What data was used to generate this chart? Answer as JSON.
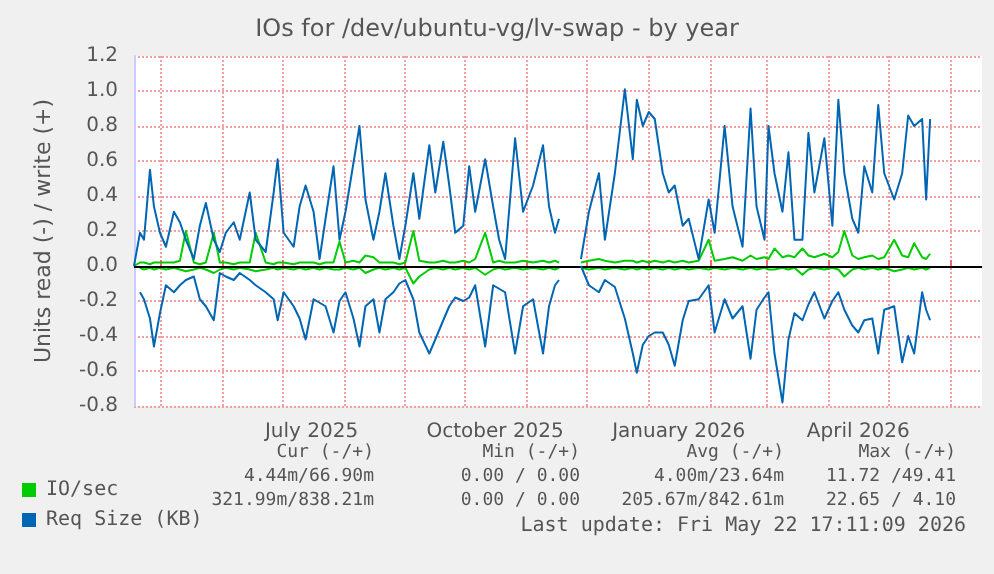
{
  "chart_data": {
    "type": "line",
    "title": "IOs for /dev/ubuntu-vg/lv-swap - by year",
    "ylabel": "Units read (-) / write (+)",
    "x": [
      "2025-04-18",
      "2025-04-21",
      "2025-04-23",
      "2025-04-26",
      "2025-04-28",
      "2025-05-01",
      "2025-05-04",
      "2025-05-08",
      "2025-05-11",
      "2025-05-14",
      "2025-05-18",
      "2025-05-21",
      "2025-05-24",
      "2025-05-28",
      "2025-05-31",
      "2025-06-03",
      "2025-06-07",
      "2025-06-10",
      "2025-06-15",
      "2025-06-18",
      "2025-06-23",
      "2025-06-27",
      "2025-06-29",
      "2025-07-02",
      "2025-07-07",
      "2025-07-10",
      "2025-07-13",
      "2025-07-17",
      "2025-07-20",
      "2025-07-23",
      "2025-07-27",
      "2025-07-30",
      "2025-08-02",
      "2025-08-06",
      "2025-08-09",
      "2025-08-12",
      "2025-08-16",
      "2025-08-19",
      "2025-08-22",
      "2025-08-26",
      "2025-08-29",
      "2025-09-01",
      "2025-09-05",
      "2025-09-08",
      "2025-09-13",
      "2025-09-16",
      "2025-09-20",
      "2025-09-23",
      "2025-09-26",
      "2025-09-30",
      "2025-10-03",
      "2025-10-06",
      "2025-10-11",
      "2025-10-15",
      "2025-10-18",
      "2025-10-21",
      "2025-10-26",
      "2025-10-30",
      "2025-11-04",
      "2025-11-09",
      "2025-11-12",
      "2025-11-15",
      "2025-11-17",
      "2025-11-22",
      "2025-11-28",
      "2025-12-02",
      "2025-12-07",
      "2025-12-10",
      "2025-12-15",
      "2025-12-20",
      "2025-12-24",
      "2025-12-26",
      "2025-12-29",
      "2026-01-01",
      "2026-01-04",
      "2026-01-08",
      "2026-01-11",
      "2026-01-14",
      "2026-01-18",
      "2026-01-21",
      "2026-01-26",
      "2026-01-31",
      "2026-02-03",
      "2026-02-08",
      "2026-02-12",
      "2026-02-17",
      "2026-02-21",
      "2026-02-24",
      "2026-02-28",
      "2026-03-02",
      "2026-03-05",
      "2026-03-09",
      "2026-03-12",
      "2026-03-15",
      "2026-03-19",
      "2026-03-22",
      "2026-03-25",
      "2026-03-30",
      "2026-04-03",
      "2026-04-06",
      "2026-04-09",
      "2026-04-13",
      "2026-04-16",
      "2026-04-19",
      "2026-04-23",
      "2026-04-26",
      "2026-04-29",
      "2026-05-04",
      "2026-05-08",
      "2026-05-11",
      "2026-05-14",
      "2026-05-18",
      "2026-05-20",
      "2026-05-22"
    ],
    "series": [
      {
        "name": "IO/sec",
        "color": "#00cc00",
        "values": [
          0,
          0.02,
          0.02,
          0.01,
          0.02,
          0.02,
          0.02,
          0.02,
          0.03,
          0.2,
          0.02,
          0.01,
          0.02,
          0.19,
          0.02,
          0.02,
          0.01,
          0.02,
          0.02,
          0.19,
          0.02,
          0.01,
          0.02,
          0.02,
          0.01,
          0.02,
          0.02,
          0.02,
          0.01,
          0.02,
          0.02,
          0.14,
          0.02,
          0.03,
          0.02,
          0.06,
          0.05,
          0.02,
          0.02,
          0.02,
          0.01,
          0.02,
          0.2,
          0.03,
          0.02,
          0.02,
          0.03,
          0.02,
          0.02,
          0.03,
          0.02,
          0.04,
          0.19,
          0.02,
          0.03,
          0.02,
          0.02,
          0.03,
          0.02,
          0.03,
          0.02,
          0.03,
          0.02,
          null,
          0.02,
          0.03,
          0.04,
          0.03,
          0.02,
          0.03,
          0.03,
          0.02,
          0.03,
          0.02,
          0.03,
          0.02,
          0.03,
          0.02,
          0.03,
          0.02,
          0.03,
          0.15,
          0.03,
          0.04,
          0.05,
          0.03,
          0.06,
          0.04,
          0.05,
          0.04,
          0.1,
          0.05,
          0.06,
          0.05,
          0.1,
          0.06,
          0.05,
          0.07,
          0.05,
          0.08,
          0.2,
          0.06,
          0.04,
          0.05,
          0.06,
          0.04,
          0.05,
          0.15,
          0.06,
          0.05,
          0.13,
          0.05,
          0.04,
          0.07
        ]
      },
      {
        "color": "#00cc00",
        "values": [
          null,
          -0.01,
          -0.02,
          -0.01,
          -0.02,
          -0.01,
          -0.02,
          -0.01,
          -0.02,
          -0.03,
          -0.02,
          -0.01,
          -0.02,
          -0.04,
          -0.02,
          -0.01,
          -0.02,
          -0.01,
          -0.02,
          -0.03,
          -0.02,
          -0.01,
          -0.02,
          -0.01,
          -0.02,
          -0.01,
          -0.02,
          -0.01,
          -0.02,
          -0.01,
          -0.02,
          -0.02,
          -0.01,
          -0.02,
          -0.01,
          -0.04,
          -0.02,
          -0.01,
          -0.02,
          -0.01,
          -0.02,
          -0.01,
          -0.1,
          -0.06,
          -0.02,
          -0.01,
          -0.02,
          -0.01,
          -0.02,
          -0.01,
          -0.02,
          -0.01,
          -0.05,
          -0.02,
          -0.01,
          -0.02,
          -0.01,
          -0.02,
          -0.01,
          -0.02,
          -0.01,
          -0.02,
          -0.01,
          null,
          -0.01,
          -0.02,
          -0.01,
          -0.02,
          -0.01,
          -0.02,
          -0.01,
          -0.02,
          -0.01,
          -0.02,
          -0.01,
          -0.02,
          -0.01,
          -0.02,
          -0.01,
          -0.02,
          -0.01,
          -0.02,
          -0.01,
          -0.02,
          -0.01,
          -0.02,
          -0.01,
          -0.02,
          -0.01,
          -0.02,
          -0.02,
          -0.01,
          -0.02,
          -0.01,
          -0.05,
          -0.02,
          -0.01,
          -0.02,
          -0.01,
          -0.02,
          -0.06,
          -0.02,
          -0.01,
          -0.02,
          -0.01,
          -0.02,
          -0.01,
          -0.03,
          -0.02,
          -0.01,
          -0.02,
          -0.01,
          -0.02,
          -0.01
        ]
      },
      {
        "name": "Req Size (KB)",
        "color": "#0066b3",
        "values": [
          0,
          0.19,
          0.15,
          0.55,
          0.34,
          0.19,
          0.11,
          0.31,
          0.25,
          0.15,
          0.04,
          0.23,
          0.36,
          0.15,
          0.08,
          0.19,
          0.25,
          0.15,
          0.42,
          0.15,
          0.08,
          0.42,
          0.61,
          0.19,
          0.11,
          0.34,
          0.46,
          0.31,
          0.04,
          0.27,
          0.57,
          0.15,
          0.31,
          0.59,
          0.8,
          0.38,
          0.15,
          0.31,
          0.53,
          0.23,
          0.04,
          0.23,
          0.53,
          0.27,
          0.69,
          0.42,
          0.71,
          0.46,
          0.19,
          0.23,
          0.57,
          0.31,
          0.61,
          0.34,
          0.15,
          0.04,
          0.73,
          0.31,
          0.46,
          0.69,
          0.34,
          0.19,
          0.27,
          null,
          0.04,
          0.31,
          0.53,
          0.15,
          0.53,
          1.01,
          0.61,
          0.95,
          0.8,
          0.88,
          0.84,
          0.53,
          0.42,
          0.46,
          0.23,
          0.27,
          0.04,
          0.38,
          0.19,
          0.8,
          0.34,
          0.11,
          0.9,
          0.34,
          0.15,
          0.8,
          0.53,
          0.31,
          0.65,
          0.15,
          0.15,
          0.76,
          0.42,
          0.73,
          0.23,
          0.95,
          0.53,
          0.27,
          0.19,
          0.57,
          0.42,
          0.92,
          0.53,
          0.38,
          0.53,
          0.86,
          0.8,
          0.84,
          0.38,
          0.84
        ]
      },
      {
        "color": "#0066b3",
        "values": [
          null,
          -0.15,
          -0.19,
          -0.3,
          -0.46,
          -0.27,
          -0.11,
          -0.15,
          -0.11,
          -0.08,
          -0.06,
          -0.19,
          -0.23,
          -0.31,
          -0.04,
          -0.06,
          -0.08,
          -0.04,
          -0.08,
          -0.11,
          -0.15,
          -0.19,
          -0.31,
          -0.15,
          -0.23,
          -0.3,
          -0.42,
          -0.19,
          -0.21,
          -0.23,
          -0.38,
          -0.2,
          -0.15,
          -0.3,
          -0.46,
          -0.23,
          -0.19,
          -0.38,
          -0.19,
          -0.15,
          -0.1,
          -0.08,
          -0.19,
          -0.38,
          -0.5,
          -0.42,
          -0.31,
          -0.23,
          -0.18,
          -0.2,
          -0.18,
          -0.11,
          -0.46,
          -0.11,
          -0.13,
          -0.15,
          -0.5,
          -0.23,
          -0.19,
          -0.5,
          -0.23,
          -0.11,
          -0.08,
          null,
          0,
          -0.11,
          -0.15,
          -0.08,
          -0.12,
          -0.3,
          -0.5,
          -0.61,
          -0.45,
          -0.4,
          -0.38,
          -0.38,
          -0.45,
          -0.57,
          -0.31,
          -0.2,
          -0.19,
          -0.11,
          -0.38,
          -0.19,
          -0.3,
          -0.23,
          -0.53,
          -0.25,
          -0.18,
          -0.15,
          -0.5,
          -0.78,
          -0.42,
          -0.27,
          -0.31,
          -0.22,
          -0.15,
          -0.3,
          -0.2,
          -0.15,
          -0.25,
          -0.34,
          -0.38,
          -0.31,
          -0.3,
          -0.5,
          -0.25,
          -0.23,
          -0.55,
          -0.4,
          -0.5,
          -0.15,
          -0.25,
          -0.31
        ]
      }
    ],
    "xlim": [
      "2025-04-18",
      "2026-06-17"
    ],
    "xticks": [
      {
        "value": "2025-05-01",
        "label": null
      },
      {
        "value": "2025-06-01",
        "label": null
      },
      {
        "value": "2025-07-01",
        "label": null
      },
      {
        "value": "2025-07-16",
        "label": "July 2025"
      },
      {
        "value": "2025-08-01",
        "label": null
      },
      {
        "value": "2025-09-01",
        "label": null
      },
      {
        "value": "2025-10-01",
        "label": null
      },
      {
        "value": "2025-10-16",
        "label": "October 2025"
      },
      {
        "value": "2025-11-01",
        "label": null
      },
      {
        "value": "2025-12-01",
        "label": null
      },
      {
        "value": "2026-01-01",
        "label": null
      },
      {
        "value": "2026-01-16",
        "label": "January 2026"
      },
      {
        "value": "2026-02-01",
        "label": null
      },
      {
        "value": "2026-03-01",
        "label": null
      },
      {
        "value": "2026-04-01",
        "label": null
      },
      {
        "value": "2026-04-16",
        "label": "April 2026"
      },
      {
        "value": "2026-05-01",
        "label": null
      },
      {
        "value": "2026-06-01",
        "label": null
      }
    ],
    "ylim": [
      -0.8,
      1.2
    ],
    "yticks": [
      {
        "value": -0.8,
        "label": "-0.8"
      },
      {
        "value": -0.6,
        "label": "-0.6"
      },
      {
        "value": -0.4,
        "label": "-0.4"
      },
      {
        "value": -0.2,
        "label": "-0.2"
      },
      {
        "value": 0,
        "label": "0.0"
      },
      {
        "value": 0.2,
        "label": "0.2"
      },
      {
        "value": 0.4,
        "label": "0.4"
      },
      {
        "value": 0.6,
        "label": "0.6"
      },
      {
        "value": 0.8,
        "label": "0.8"
      },
      {
        "value": 1,
        "label": "1.0"
      },
      {
        "value": 1.2,
        "label": "1.2"
      }
    ],
    "grid": true,
    "legend": "bottom",
    "ref_lines": [
      {
        "axis": "y",
        "value": 0,
        "color": "#000000"
      }
    ],
    "annotations": [
      "Cur (-/+)",
      "Min (-/+)",
      "Avg (-/+)",
      "Max (-/+)",
      "4.44m/66.90m",
      "0.00 / 0.00",
      "4.00m/23.64m",
      "11.72 /49.41",
      "321.99m/838.21m",
      "0.00 / 0.00",
      "205.67m/842.61m",
      "22.65 / 4.10",
      "Last update: Fri May 22 17:11:09 2026"
    ]
  }
}
